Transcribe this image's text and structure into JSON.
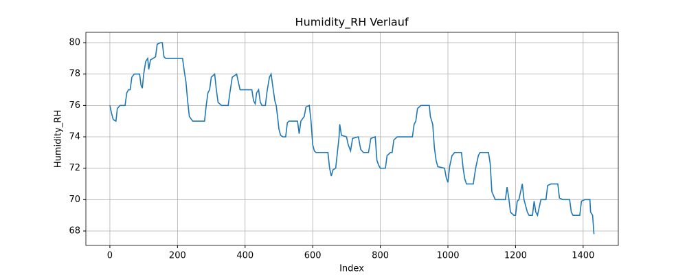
{
  "chart_data": {
    "type": "line",
    "title": "Humidity_RH Verlauf",
    "x_label": "Index",
    "y_label": "Humidity_RH",
    "x": [
      0,
      5,
      10,
      18,
      22,
      30,
      45,
      50,
      55,
      60,
      65,
      72,
      88,
      92,
      96,
      100,
      106,
      112,
      115,
      120,
      128,
      135,
      140,
      150,
      155,
      160,
      165,
      215,
      220,
      225,
      230,
      235,
      245,
      280,
      285,
      290,
      295,
      300,
      310,
      315,
      320,
      330,
      350,
      355,
      362,
      375,
      380,
      385,
      420,
      425,
      430,
      434,
      440,
      445,
      450,
      460,
      465,
      472,
      477,
      482,
      488,
      492,
      496,
      500,
      505,
      512,
      520,
      525,
      530,
      555,
      560,
      565,
      575,
      580,
      590,
      595,
      600,
      605,
      610,
      645,
      650,
      655,
      660,
      668,
      672,
      678,
      680,
      685,
      700,
      705,
      712,
      718,
      735,
      742,
      750,
      765,
      772,
      785,
      790,
      795,
      800,
      815,
      820,
      830,
      835,
      840,
      850,
      895,
      900,
      905,
      910,
      920,
      945,
      948,
      955,
      960,
      965,
      970,
      990,
      995,
      1000,
      1005,
      1012,
      1020,
      1040,
      1045,
      1050,
      1055,
      1075,
      1082,
      1090,
      1095,
      1120,
      1125,
      1130,
      1140,
      1170,
      1175,
      1180,
      1185,
      1195,
      1200,
      1205,
      1210,
      1220,
      1225,
      1235,
      1240,
      1250,
      1255,
      1260,
      1265,
      1275,
      1290,
      1295,
      1305,
      1325,
      1330,
      1340,
      1360,
      1365,
      1370,
      1390,
      1395,
      1405,
      1420,
      1422,
      1428,
      1432
    ],
    "series": [
      {
        "name": "Humidity_RH",
        "color": "#1f77b4",
        "values": [
          76,
          75.5,
          75.1,
          75,
          75.8,
          76,
          76,
          76.8,
          77,
          77,
          77.8,
          78,
          78,
          77.3,
          77.1,
          78,
          78.8,
          79,
          78.3,
          78.9,
          79,
          79.1,
          79.9,
          80,
          80,
          79.1,
          79,
          79,
          78.2,
          77.5,
          76.3,
          75.3,
          75,
          75,
          76,
          76.8,
          77,
          77.8,
          78,
          77,
          76.2,
          76,
          76,
          76.8,
          77.8,
          78,
          77.5,
          77,
          77,
          76.3,
          76.1,
          76.8,
          77,
          76.2,
          76,
          76,
          76.9,
          77.8,
          78,
          77.2,
          76.3,
          76,
          75.3,
          74.5,
          74.1,
          74,
          74,
          74.9,
          75,
          75,
          74.2,
          75,
          75.3,
          75.9,
          76,
          75,
          73.5,
          73.1,
          73,
          73,
          72,
          71.5,
          71.9,
          72,
          72.8,
          74,
          74.8,
          74.1,
          74,
          73.5,
          73.1,
          73.9,
          74,
          73.2,
          73,
          73,
          73.9,
          74,
          72.5,
          72.2,
          72,
          72,
          72.8,
          73,
          73,
          73.8,
          74,
          74,
          74.8,
          75,
          75.8,
          76,
          76,
          75.3,
          74.8,
          73.3,
          72.5,
          72.1,
          72,
          71.4,
          71.1,
          72.1,
          72.8,
          73,
          73,
          72,
          71.3,
          71,
          71,
          72,
          72.8,
          73,
          73,
          72.3,
          70.5,
          70,
          70,
          70.8,
          70.1,
          69.2,
          69,
          69,
          69.9,
          70,
          71,
          70,
          69.2,
          69,
          69,
          69.9,
          69.2,
          69,
          70,
          70,
          70.9,
          71,
          71,
          70.1,
          70,
          70,
          69.2,
          69,
          69,
          69.9,
          70,
          70,
          69.2,
          69,
          67.8
        ]
      }
    ],
    "xlim": [
      -71,
      1504
    ],
    "ylim": [
      67.08,
      80.66
    ],
    "xticks": [
      0,
      200,
      400,
      600,
      800,
      1000,
      1200,
      1400
    ],
    "yticks": [
      68,
      70,
      72,
      74,
      76,
      78,
      80
    ],
    "grid": true
  }
}
